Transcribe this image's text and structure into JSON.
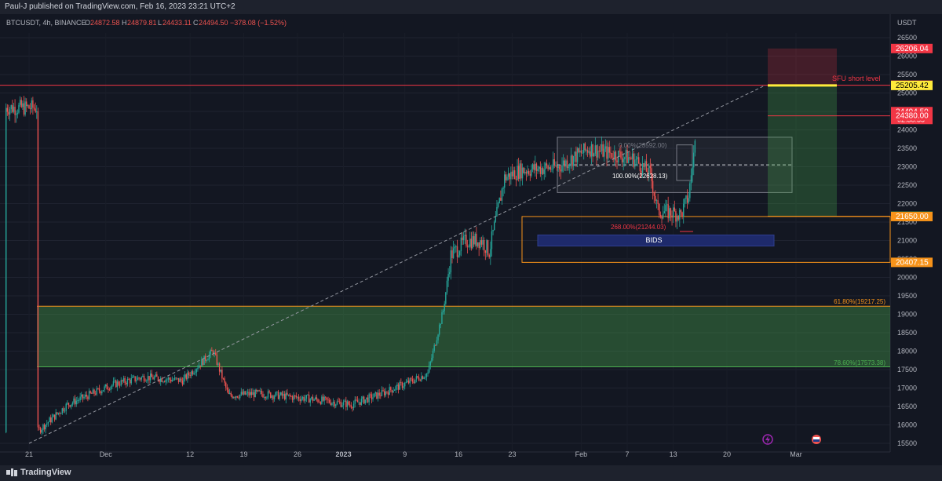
{
  "header": {
    "publisher_line": "Paul-J published on TradingView.com, Feb 16, 2023 23:21 UTC+2"
  },
  "legend": {
    "symbol": "BTCUSDT, 4h, BINANCE",
    "o_label": "O",
    "o": "24872.58",
    "h_label": "H",
    "h": "24879.81",
    "l_label": "L",
    "l": "24433.11",
    "c_label": "C",
    "c": "24494.50",
    "change": "−378.08 (−1.52%)"
  },
  "footer": {
    "brand": "TradingView"
  },
  "colors": {
    "background": "#131722",
    "up": "#26a69a",
    "down": "#ef5350",
    "orange": "#f7931a",
    "yellow": "#ffeb3b",
    "green_zone": "#4caf50"
  },
  "icons": [
    "lightning-icon",
    "flag-icon"
  ],
  "chart_data": {
    "type": "candlestick",
    "symbol": "BTCUSDT",
    "timeframe": "4h",
    "exchange": "BINANCE",
    "currency_label": "USDT",
    "y_ticks": [
      15500,
      16000,
      16500,
      17000,
      17500,
      18000,
      18500,
      19000,
      19500,
      20000,
      20500,
      21000,
      21500,
      22000,
      22500,
      23000,
      23500,
      24000,
      24500,
      25000,
      25500,
      26000,
      26500
    ],
    "x_ticks": [
      "21",
      "Dec",
      "12",
      "19",
      "26",
      "2023",
      "9",
      "16",
      "23",
      "Feb",
      "7",
      "13",
      "20",
      "Mar"
    ],
    "price_anchors": [
      {
        "date": "Nov 21",
        "price": 15800
      },
      {
        "date": "Nov 25",
        "price": 16550
      },
      {
        "date": "Dec 1",
        "price": 17100
      },
      {
        "date": "Dec 5",
        "price": 17300
      },
      {
        "date": "Dec 10",
        "price": 17200
      },
      {
        "date": "Dec 14",
        "price": 18000
      },
      {
        "date": "Dec 16",
        "price": 16800
      },
      {
        "date": "Dec 20",
        "price": 16850
      },
      {
        "date": "Dec 27",
        "price": 16700
      },
      {
        "date": "Jan 1",
        "price": 16550
      },
      {
        "date": "Jan 5",
        "price": 16850
      },
      {
        "date": "Jan 9",
        "price": 17200
      },
      {
        "date": "Jan 11",
        "price": 17400
      },
      {
        "date": "Jan 13",
        "price": 19100
      },
      {
        "date": "Jan 14",
        "price": 20600
      },
      {
        "date": "Jan 16",
        "price": 21000
      },
      {
        "date": "Jan 18",
        "price": 21000
      },
      {
        "date": "Jan 19",
        "price": 20700
      },
      {
        "date": "Jan 21",
        "price": 22700
      },
      {
        "date": "Jan 23",
        "price": 22900
      },
      {
        "date": "Jan 28",
        "price": 23000
      },
      {
        "date": "Feb 1",
        "price": 23500
      },
      {
        "date": "Feb 3",
        "price": 23400
      },
      {
        "date": "Feb 7",
        "price": 23200
      },
      {
        "date": "Feb 9",
        "price": 22800
      },
      {
        "date": "Feb 10",
        "price": 21800
      },
      {
        "date": "Feb 12",
        "price": 21750
      },
      {
        "date": "Feb 13",
        "price": 21700
      },
      {
        "date": "Feb 14",
        "price": 22200
      },
      {
        "date": "Feb 15",
        "price": 23900
      },
      {
        "date": "Feb 16",
        "price": 24600
      }
    ],
    "price_labels": [
      {
        "text": "26206.04",
        "price": 26206.04,
        "color": "#f23645"
      },
      {
        "text": "25211.32",
        "price": 25211.32,
        "color": "#f23645"
      },
      {
        "text": "25205.42",
        "price": 25205.42,
        "color": "#ffeb3b"
      },
      {
        "text": "24494.50",
        "price": 24494.5,
        "color": "#f23645",
        "countdown": "02:38:35"
      },
      {
        "text": "24380.00",
        "price": 24380.0,
        "color": "#f23645"
      },
      {
        "text": "21656.53",
        "price": 21656.53,
        "color": "#4caf50"
      },
      {
        "text": "21650.00",
        "price": 21650.0,
        "color": "#f7931a"
      },
      {
        "text": "20407.15",
        "price": 20407.15,
        "color": "#f7931a"
      }
    ],
    "annotations": {
      "sfu_label": "SFU short level",
      "fib_0": "0.00%(23592.00)",
      "fib_100": "100.00%(22628.13)",
      "fib_268": "268.00%(21244.03)",
      "bids": "BIDS",
      "fib_618": "61.80%(19217.25)",
      "fib_786": "78.60%(17573.38)"
    },
    "levels": {
      "sfu_short": 25205.42,
      "resistance_line": 25211.32,
      "box_top": 23800,
      "box_mid": 23050,
      "box_bottom": 22300,
      "orange_box_top": 21650,
      "orange_box_bottom": 20407.15,
      "bids_top": 21150,
      "bids_bottom": 20850,
      "stop_top": 26206.04,
      "entry": 25205.42,
      "stop_level_line": 24380,
      "target": 21656.53,
      "green_zone_top": 19217.25,
      "green_zone_bottom": 17573.38
    },
    "ylim": [
      15500,
      26800
    ]
  }
}
